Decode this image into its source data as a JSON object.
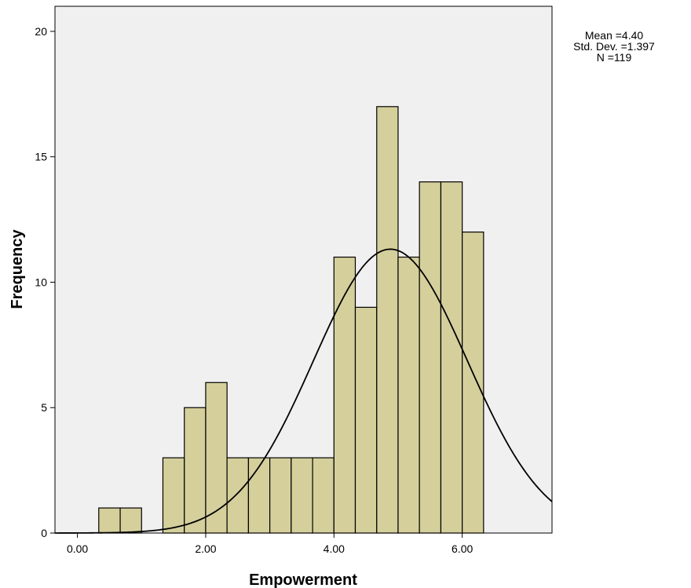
{
  "chart_data": {
    "type": "bar",
    "subtype": "histogram",
    "xlabel": "Empowerment",
    "ylabel": "Frequency",
    "bins": [
      {
        "start": 0.333,
        "end": 0.667,
        "count": 1
      },
      {
        "start": 0.667,
        "end": 1.0,
        "count": 1
      },
      {
        "start": 1.0,
        "end": 1.333,
        "count": 0
      },
      {
        "start": 1.333,
        "end": 1.667,
        "count": 3
      },
      {
        "start": 1.667,
        "end": 2.0,
        "count": 5
      },
      {
        "start": 2.0,
        "end": 2.333,
        "count": 6
      },
      {
        "start": 2.333,
        "end": 2.667,
        "count": 3
      },
      {
        "start": 2.667,
        "end": 3.0,
        "count": 3
      },
      {
        "start": 3.0,
        "end": 3.333,
        "count": 3
      },
      {
        "start": 3.333,
        "end": 3.667,
        "count": 3
      },
      {
        "start": 3.667,
        "end": 4.0,
        "count": 3
      },
      {
        "start": 4.0,
        "end": 4.333,
        "count": 11
      },
      {
        "start": 4.333,
        "end": 4.667,
        "count": 9
      },
      {
        "start": 4.667,
        "end": 5.0,
        "count": 17
      },
      {
        "start": 5.0,
        "end": 5.333,
        "count": 11
      },
      {
        "start": 5.333,
        "end": 5.667,
        "count": 14
      },
      {
        "start": 5.667,
        "end": 6.0,
        "count": 14
      },
      {
        "start": 6.0,
        "end": 6.333,
        "count": 12
      }
    ],
    "xticks": [
      0,
      2,
      4,
      6
    ],
    "xtick_labels": [
      "0.00",
      "2.00",
      "4.00",
      "6.00"
    ],
    "yticks": [
      0,
      5,
      10,
      15,
      20
    ],
    "ytick_labels": [
      "0",
      "5",
      "10",
      "15",
      "20"
    ],
    "xlim": [
      -0.35,
      7.4
    ],
    "ylim": [
      0,
      21
    ],
    "normal_curve": {
      "mean": 4.4,
      "sd": 1.397,
      "n": 119,
      "bin_width": 0.333
    },
    "stats": [
      "Mean =4.40",
      "Std. Dev. =1.397",
      "N =119"
    ],
    "colors": {
      "bar_fill": "#d5cf9c",
      "bar_stroke": "#000000",
      "plot_bg": "#f0f0f0",
      "curve": "#000000"
    },
    "grid": false,
    "legend": "none"
  }
}
